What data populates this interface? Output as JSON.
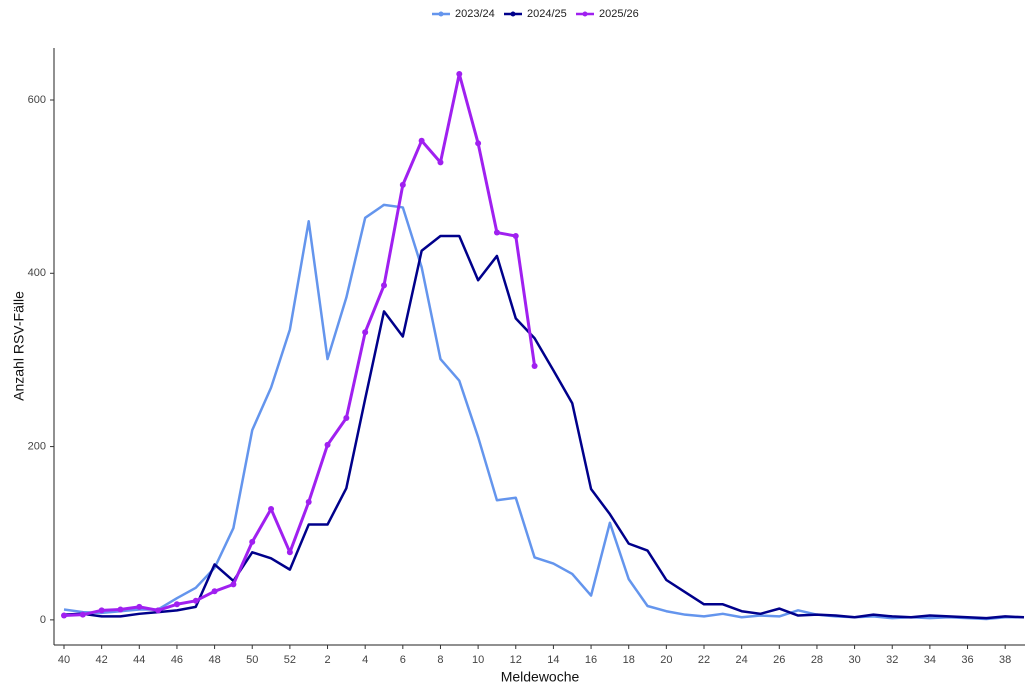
{
  "chart_data": {
    "type": "line",
    "xlabel": "Meldewoche",
    "ylabel": "Anzahl RSV-Fälle",
    "categories": [
      "40",
      null,
      "42",
      null,
      "44",
      null,
      "46",
      null,
      "48",
      null,
      "50",
      null,
      "52",
      null,
      "2",
      null,
      "4",
      null,
      "6",
      null,
      "8",
      null,
      "10",
      null,
      "12",
      null,
      "14",
      null,
      "16",
      null,
      "18",
      null,
      "20",
      null,
      "22",
      null,
      "24",
      null,
      "26",
      null,
      "28",
      null,
      "30",
      null,
      "32",
      null,
      "34",
      null,
      "36",
      null,
      "38",
      null
    ],
    "series": [
      {
        "name": "2023/24",
        "color": "#6495ed",
        "markers": false,
        "values": [
          12,
          9,
          8,
          10,
          12,
          12,
          25,
          37,
          60,
          106,
          219,
          268,
          335,
          460,
          301,
          372,
          464,
          479,
          476,
          407,
          301,
          276,
          211,
          138,
          141,
          72,
          65,
          53,
          28,
          112,
          47,
          16,
          10,
          6,
          4,
          7,
          3,
          5,
          4,
          11,
          6,
          4,
          3,
          4,
          2,
          3,
          2,
          3,
          2,
          1,
          3,
          3
        ]
      },
      {
        "name": "2024/25",
        "color": "#00008b",
        "markers": false,
        "values": [
          6,
          7,
          4,
          4,
          7,
          9,
          11,
          15,
          64,
          45,
          78,
          71,
          58,
          110,
          110,
          152,
          255,
          356,
          327,
          426,
          443,
          443,
          392,
          420,
          348,
          325,
          288,
          250,
          151,
          122,
          88,
          80,
          46,
          32,
          18,
          18,
          10,
          7,
          13,
          5,
          6,
          5,
          3,
          6,
          4,
          3,
          5,
          4,
          3,
          2,
          4,
          3
        ]
      },
      {
        "name": "2025/26",
        "color": "#a020f0",
        "markers": true,
        "values": [
          5,
          6,
          11,
          12,
          15,
          11,
          18,
          22,
          33,
          41,
          90,
          128,
          78,
          136,
          202,
          233,
          332,
          386,
          502,
          553,
          528,
          630,
          550,
          447,
          443,
          293,
          null,
          null,
          null,
          null,
          null,
          null,
          null,
          null,
          null,
          null,
          null,
          null,
          null,
          null,
          null,
          null,
          null,
          null,
          null,
          null,
          null,
          null,
          null,
          null,
          null,
          null
        ]
      }
    ],
    "ylim": [
      -29,
      660
    ],
    "yticks": [
      0,
      200,
      400,
      600
    ],
    "grid": false,
    "legend": "top"
  }
}
